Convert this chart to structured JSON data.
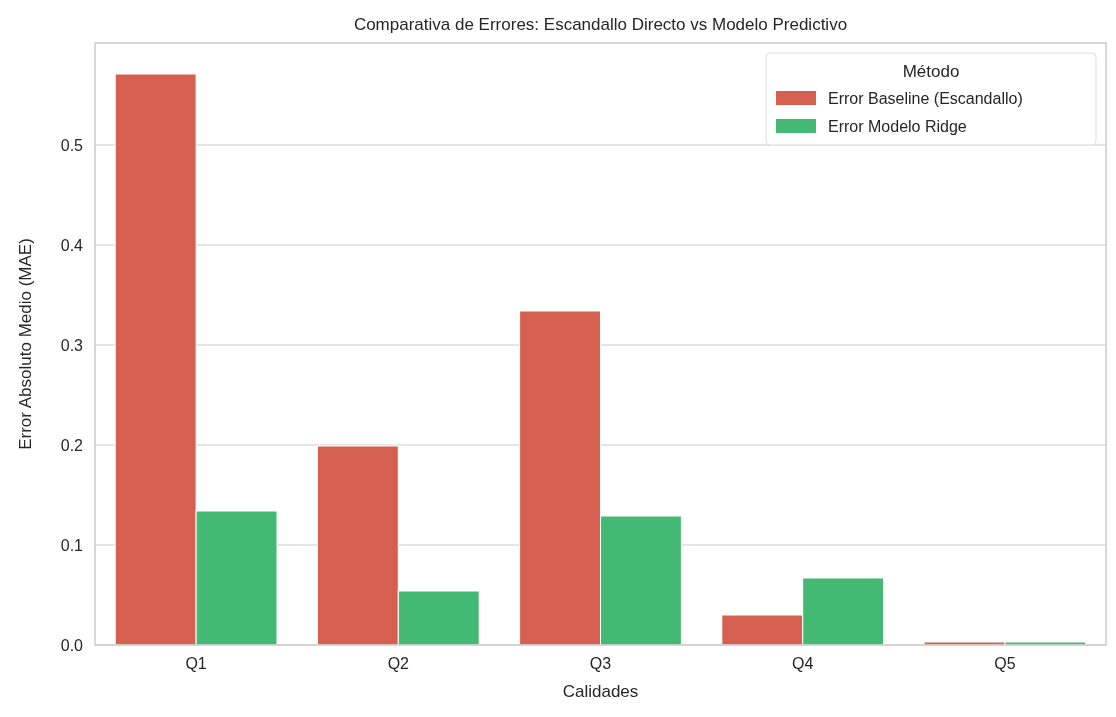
{
  "chart_data": {
    "type": "bar",
    "title": "Comparativa de Errores: Escandallo Directo vs Modelo Predictivo",
    "xlabel": "Calidades",
    "ylabel": "Error Absoluto Medio (MAE)",
    "legend_title": "Método",
    "categories": [
      "Q1",
      "Q2",
      "Q3",
      "Q4",
      "Q5"
    ],
    "series": [
      {
        "name": "Error Baseline (Escandallo)",
        "color": "#d5604f",
        "values": [
          0.571,
          0.199,
          0.334,
          0.03,
          0.003
        ]
      },
      {
        "name": "Error Modelo Ridge",
        "color": "#44b973",
        "values": [
          0.134,
          0.054,
          0.129,
          0.067,
          0.003
        ]
      }
    ],
    "ylim": [
      0,
      0.602
    ],
    "yticks": [
      {
        "value": 0,
        "label": "0.0"
      },
      0.1,
      0.2,
      0.3,
      0.4,
      0.5
    ],
    "grid": "y",
    "legend": "top right"
  }
}
